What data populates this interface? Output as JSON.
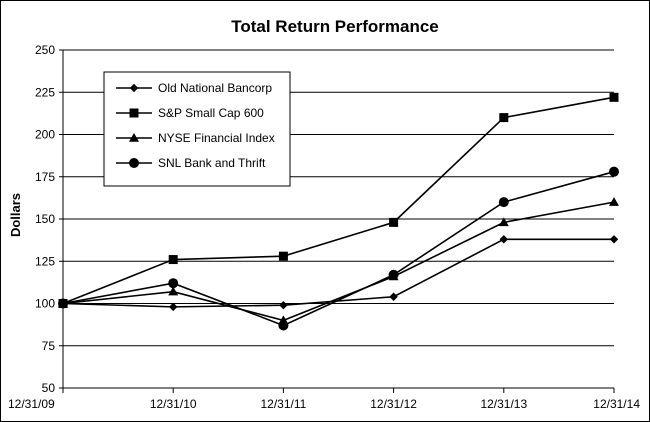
{
  "chart_data": {
    "type": "line",
    "title": "Total Return Performance",
    "xlabel": "",
    "ylabel": "Dollars",
    "categories": [
      "12/31/09",
      "12/31/10",
      "12/31/11",
      "12/31/12",
      "12/31/13",
      "12/31/14"
    ],
    "ylim": [
      50,
      250
    ],
    "yticks": [
      50,
      75,
      100,
      125,
      150,
      175,
      200,
      225,
      250
    ],
    "grid": true,
    "legend_position": "top-left",
    "series": [
      {
        "name": "Old National Bancorp",
        "marker": "diamond",
        "values": [
          100,
          98,
          99,
          104,
          138,
          138
        ]
      },
      {
        "name": "S&P Small Cap 600",
        "marker": "square",
        "values": [
          100,
          126,
          128,
          148,
          210,
          222
        ]
      },
      {
        "name": "NYSE Financial Index",
        "marker": "triangle",
        "values": [
          100,
          107,
          90,
          116,
          148,
          160
        ]
      },
      {
        "name": "SNL Bank and Thrift",
        "marker": "circle",
        "values": [
          100,
          112,
          87,
          117,
          160,
          178
        ]
      }
    ],
    "colors": {
      "line": "#000000",
      "grid": "#000000",
      "background": "#ffffff"
    }
  }
}
